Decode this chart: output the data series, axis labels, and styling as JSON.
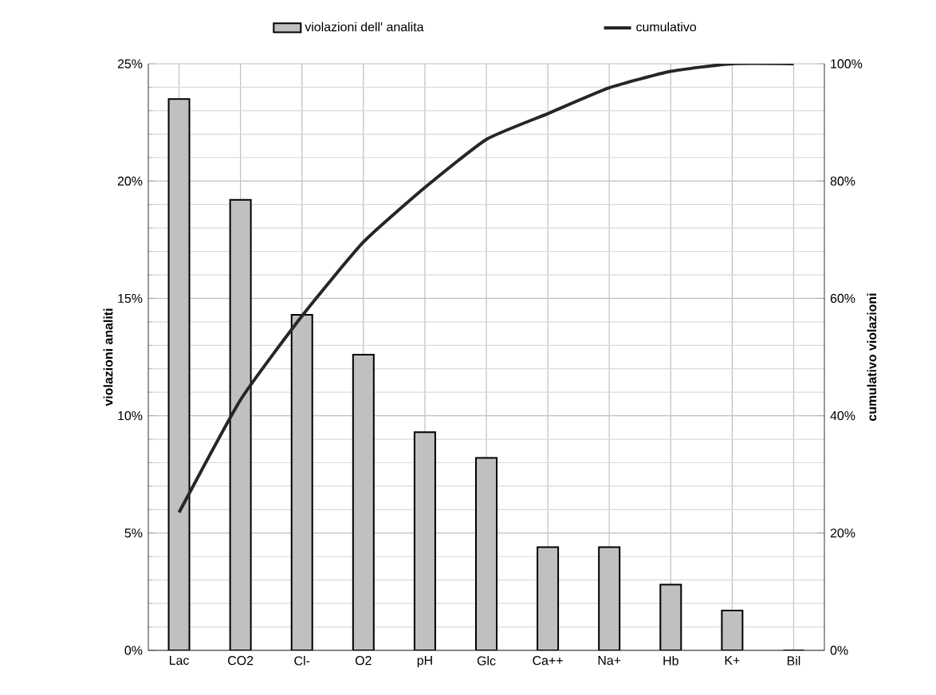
{
  "chart_data": {
    "type": "bar",
    "ylabel": "violazioni analiti",
    "y2label": "cumulativo violazioni",
    "categories": [
      "Lac",
      "CO2",
      "Cl-",
      "O2",
      "pH",
      "Glc",
      "Ca++",
      "Na+",
      "Hb",
      "K+",
      "Bil"
    ],
    "series": [
      {
        "name": "violazioni dell' analita",
        "color": "#c0c0c0",
        "values": [
          23.5,
          19.2,
          14.3,
          12.6,
          9.3,
          8.2,
          4.4,
          4.4,
          2.8,
          1.7,
          0
        ]
      },
      {
        "name": "cumulativo",
        "type": "line",
        "axis": "y2",
        "color": "#262626",
        "values": [
          23.5,
          42.7,
          57.0,
          69.6,
          78.9,
          87.1,
          91.5,
          95.9,
          98.7,
          100,
          100
        ]
      }
    ],
    "ylim": [
      0,
      25
    ],
    "yticks": [
      {
        "value": 0,
        "label": "0%"
      },
      {
        "value": 5,
        "label": "5%"
      },
      {
        "value": 10,
        "label": "10%"
      },
      {
        "value": 15,
        "label": "15%"
      },
      {
        "value": 20,
        "label": "20%"
      },
      {
        "value": 25,
        "label": "25%"
      }
    ],
    "y2lim": [
      0,
      100
    ],
    "y2ticks": [
      {
        "value": 0,
        "label": "0%"
      },
      {
        "value": 20,
        "label": "20%"
      },
      {
        "value": 40,
        "label": "40%"
      },
      {
        "value": 60,
        "label": "60%"
      },
      {
        "value": 80,
        "label": "80%"
      },
      {
        "value": 100,
        "label": "100%"
      }
    ],
    "grid": true,
    "legend": "top"
  }
}
